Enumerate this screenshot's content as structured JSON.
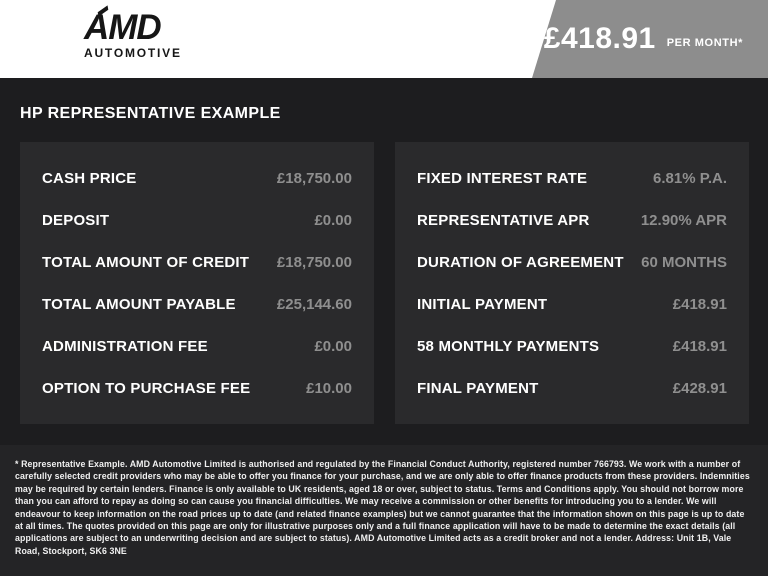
{
  "header": {
    "logo": {
      "brand": "AMD",
      "sub": "AUTOMOTIVE"
    },
    "price_banner": {
      "amount": "£418.91",
      "per_label": "PER MONTH*"
    }
  },
  "title": "HP REPRESENTATIVE EXAMPLE",
  "finance": {
    "left_rows": [
      {
        "label": "CASH PRICE",
        "value": "£18,750.00"
      },
      {
        "label": "DEPOSIT",
        "value": "£0.00"
      },
      {
        "label": "TOTAL AMOUNT OF CREDIT",
        "value": "£18,750.00"
      },
      {
        "label": "TOTAL AMOUNT PAYABLE",
        "value": "£25,144.60"
      },
      {
        "label": "ADMINISTRATION FEE",
        "value": "£0.00"
      },
      {
        "label": "OPTION TO PURCHASE FEE",
        "value": "£10.00"
      }
    ],
    "right_rows": [
      {
        "label": "FIXED INTEREST RATE",
        "value": "6.81% P.A."
      },
      {
        "label": "REPRESENTATIVE APR",
        "value": "12.90% APR"
      },
      {
        "label": "DURATION OF AGREEMENT",
        "value": "60 MONTHS"
      },
      {
        "label": "INITIAL PAYMENT",
        "value": "£418.91"
      },
      {
        "label": "58 MONTHLY PAYMENTS",
        "value": "£418.91"
      },
      {
        "label": "FINAL PAYMENT",
        "value": "£428.91"
      }
    ]
  },
  "disclaimer": "* Representative Example. AMD Automotive Limited is authorised and regulated by the Financial Conduct Authority, registered number 766793. We work with a number of carefully selected credit providers who may be able to offer you finance for your purchase, and we are only able to offer finance products from these providers. Indemnities may be required by certain lenders. Finance is only available to UK residents, aged 18 or over, subject to status. Terms and Conditions apply. You should not borrow more than you can afford to repay as doing so can cause you financial difficulties. We may receive a commission or other benefits for introducing you to a lender. We will endeavour to keep information on the road prices up to date (and related finance examples) but we cannot guarantee that the information shown on this page is up to date at all times. The quotes provided on this page are only for illustrative purposes only and a full finance application will have to be made to determine the exact details (all applications are subject to an underwriting decision and are subject to status). AMD Automotive Limited acts as a credit broker and not a lender. Address: Unit 1B, Vale Road, Stockport, SK6 3NE",
  "colors": {
    "c-banner-gray": "#8d8d8d",
    "c-main-bg": "#1d1d1f",
    "c-panel-bg": "#2a2a2c",
    "c-disclaimer-bg": "#242426",
    "c-value": "#8f8f8f",
    "c-label": "#ffffff"
  }
}
